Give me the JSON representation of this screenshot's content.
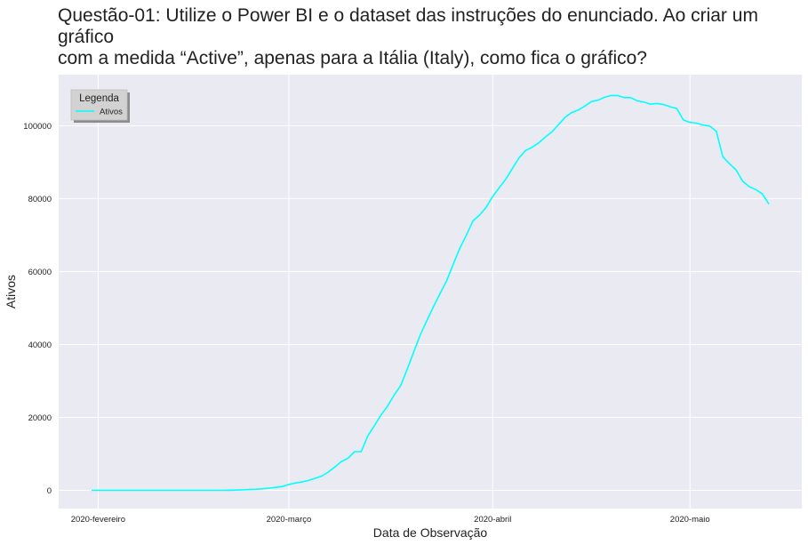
{
  "title": "Questão-01: Utilize o Power BI e o dataset das instruções do enunciado. Ao criar um gráfico\ncom a medida “Active”, apenas para a Itália (Italy), como fica o gráfico?",
  "colors": {
    "background": "#eaeaf2",
    "grid": "#ffffff",
    "series": "#00ffff"
  },
  "chart_data": {
    "type": "line",
    "title": "",
    "xlabel": "Data de Observação",
    "ylabel": "Ativos",
    "x_ticks": [
      "2020-02-01",
      "2020-03-01",
      "2020-04-01",
      "2020-05-01"
    ],
    "x_tick_labels": [
      "2020-fevereiro",
      "2020-março",
      "2020-abril",
      "2020-maio"
    ],
    "y_ticks": [
      0,
      20000,
      40000,
      60000,
      80000,
      100000
    ],
    "y_tick_labels": [
      "0",
      "20000",
      "40000",
      "60000",
      "80000",
      "100000"
    ],
    "xlim": [
      "2020-01-26",
      "2020-05-18"
    ],
    "ylim": [
      -5000,
      114000
    ],
    "grid": true,
    "legend": {
      "title": "Legenda",
      "placement": "top-left"
    },
    "series": [
      {
        "name": "Ativos",
        "color": "#00ffff",
        "points": [
          [
            "2020-01-31",
            0
          ],
          [
            "2020-02-20",
            0
          ],
          [
            "2020-02-21",
            20
          ],
          [
            "2020-02-22",
            80
          ],
          [
            "2020-02-23",
            150
          ],
          [
            "2020-02-24",
            220
          ],
          [
            "2020-02-25",
            300
          ],
          [
            "2020-02-26",
            450
          ],
          [
            "2020-02-27",
            600
          ],
          [
            "2020-02-28",
            800
          ],
          [
            "2020-02-29",
            1050
          ],
          [
            "2020-03-01",
            1600
          ],
          [
            "2020-03-02",
            2000
          ],
          [
            "2020-03-03",
            2300
          ],
          [
            "2020-03-04",
            2700
          ],
          [
            "2020-03-05",
            3300
          ],
          [
            "2020-03-06",
            3900
          ],
          [
            "2020-03-07",
            5000
          ],
          [
            "2020-03-08",
            6400
          ],
          [
            "2020-03-09",
            7900
          ],
          [
            "2020-03-10",
            8800
          ],
          [
            "2020-03-11",
            10600
          ],
          [
            "2020-03-12",
            10600
          ],
          [
            "2020-03-13",
            14900
          ],
          [
            "2020-03-14",
            17700
          ],
          [
            "2020-03-15",
            20600
          ],
          [
            "2020-03-16",
            23100
          ],
          [
            "2020-03-17",
            26100
          ],
          [
            "2020-03-18",
            28700
          ],
          [
            "2020-03-19",
            33200
          ],
          [
            "2020-03-20",
            38000
          ],
          [
            "2020-03-21",
            42700
          ],
          [
            "2020-03-22",
            46600
          ],
          [
            "2020-03-23",
            50400
          ],
          [
            "2020-03-24",
            54000
          ],
          [
            "2020-03-25",
            57500
          ],
          [
            "2020-03-26",
            62000
          ],
          [
            "2020-03-27",
            66400
          ],
          [
            "2020-03-28",
            70000
          ],
          [
            "2020-03-29",
            73900
          ],
          [
            "2020-03-30",
            75500
          ],
          [
            "2020-03-31",
            77600
          ],
          [
            "2020-04-01",
            80600
          ],
          [
            "2020-04-02",
            83000
          ],
          [
            "2020-04-03",
            85400
          ],
          [
            "2020-04-04",
            88300
          ],
          [
            "2020-04-05",
            91200
          ],
          [
            "2020-04-06",
            93200
          ],
          [
            "2020-04-07",
            94100
          ],
          [
            "2020-04-08",
            95300
          ],
          [
            "2020-04-09",
            96900
          ],
          [
            "2020-04-10",
            98300
          ],
          [
            "2020-04-11",
            100300
          ],
          [
            "2020-04-12",
            102300
          ],
          [
            "2020-04-13",
            103600
          ],
          [
            "2020-04-14",
            104300
          ],
          [
            "2020-04-15",
            105400
          ],
          [
            "2020-04-16",
            106600
          ],
          [
            "2020-04-17",
            107000
          ],
          [
            "2020-04-18",
            107800
          ],
          [
            "2020-04-19",
            108300
          ],
          [
            "2020-04-20",
            108300
          ],
          [
            "2020-04-21",
            107700
          ],
          [
            "2020-04-22",
            107700
          ],
          [
            "2020-04-23",
            106800
          ],
          [
            "2020-04-24",
            106500
          ],
          [
            "2020-04-25",
            105900
          ],
          [
            "2020-04-26",
            106100
          ],
          [
            "2020-04-27",
            105800
          ],
          [
            "2020-04-28",
            105200
          ],
          [
            "2020-04-29",
            104700
          ],
          [
            "2020-04-30",
            101600
          ],
          [
            "2020-05-01",
            100900
          ],
          [
            "2020-05-02",
            100700
          ],
          [
            "2020-05-03",
            100200
          ],
          [
            "2020-05-04",
            99900
          ],
          [
            "2020-05-05",
            98500
          ],
          [
            "2020-05-06",
            91500
          ],
          [
            "2020-05-07",
            89600
          ],
          [
            "2020-05-08",
            87900
          ],
          [
            "2020-05-09",
            84800
          ],
          [
            "2020-05-10",
            83300
          ],
          [
            "2020-05-11",
            82500
          ],
          [
            "2020-05-12",
            81300
          ],
          [
            "2020-05-13",
            78500
          ]
        ]
      }
    ]
  }
}
